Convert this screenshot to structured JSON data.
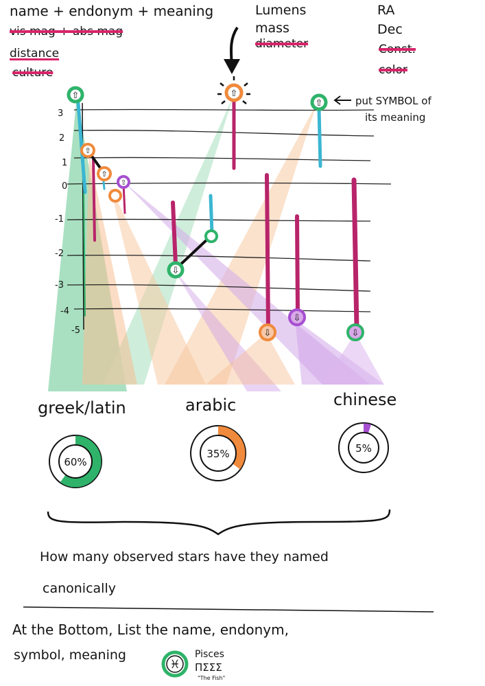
{
  "top_notes": {
    "left": [
      {
        "text": "name + endonym + meaning",
        "struck": false
      },
      {
        "text": "vis mag + abs mag",
        "struck": true
      },
      {
        "text": "distance",
        "struck": false
      },
      {
        "text": "culture",
        "struck": true
      }
    ],
    "center": [
      {
        "text": "Lumens",
        "struck": false
      },
      {
        "text": "mass",
        "struck": false
      },
      {
        "text": "diameter",
        "struck": true
      }
    ],
    "right": [
      {
        "text": "RA",
        "struck": false
      },
      {
        "text": "Dec",
        "struck": false
      },
      {
        "text": "Const.",
        "struck": true
      },
      {
        "text": "color",
        "struck": true
      }
    ],
    "symbol_note_line1": "put SYMBOL of",
    "symbol_note_line2": "its meaning"
  },
  "axis": {
    "ticks": [
      "3",
      "2",
      "1",
      "0",
      "-1",
      "-2",
      "-3",
      "-4",
      "-5"
    ]
  },
  "cultures": [
    {
      "label": "greek/latin",
      "percent": 60,
      "percent_label": "60%",
      "color": "#2fb36a"
    },
    {
      "label": "arabic",
      "percent": 35,
      "percent_label": "35%",
      "color": "#f08a3c"
    },
    {
      "label": "chinese",
      "percent": 5,
      "percent_label": "5%",
      "color": "#a64fd1"
    }
  ],
  "question_line1": "How many observed stars have they named",
  "question_line2": "canonically",
  "bottom_line1": "At the Bottom, List the name, endonym,",
  "bottom_line2": "symbol, meaning",
  "example": {
    "name": "Pisces",
    "endonym": "ΠΣΣΣ",
    "meaning": "\"The Fish\""
  },
  "colors": {
    "green": "#2fb36a",
    "orange": "#f08a3c",
    "purple": "#a64fd1",
    "magenta": "#b8246a",
    "cyan": "#3bb6d2",
    "strike": "#d8246a"
  }
}
